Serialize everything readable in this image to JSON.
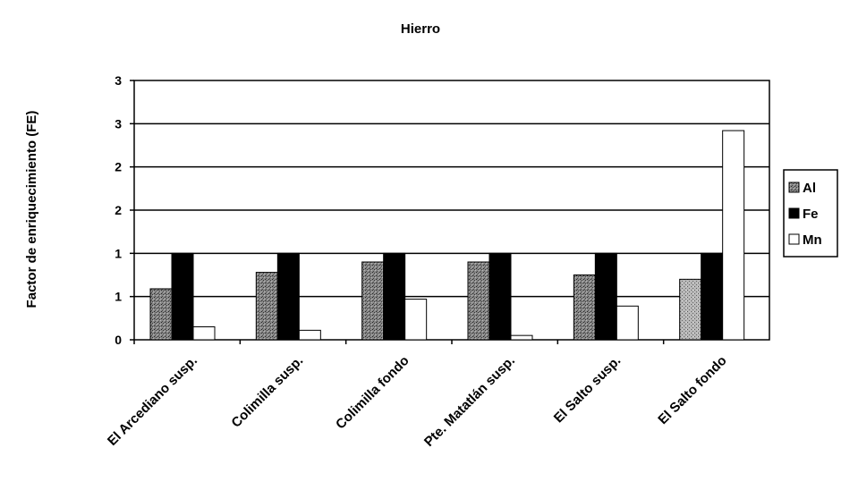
{
  "chart_data": {
    "type": "bar",
    "title": "Hierro",
    "xlabel": "",
    "ylabel": "Factor de enriquecimiento (FE)",
    "ylim": [
      0,
      3
    ],
    "y_ticks": [
      "0",
      "1",
      "1",
      "2",
      "2",
      "3",
      "3"
    ],
    "y_tick_values": [
      0,
      0.5,
      1.0,
      1.5,
      2.0,
      2.5,
      3.0
    ],
    "grid": "horizontal",
    "legend_position": "right",
    "categories": [
      "El Arcediano susp.",
      "Colimilla susp.",
      "Colimilla fondo",
      "Pte. Matatlán susp.",
      "El Salto susp.",
      "El Salto fondo"
    ],
    "series": [
      {
        "name": "Al",
        "color": "#6e6e6e",
        "values": [
          0.59,
          0.78,
          0.9,
          0.9,
          0.75,
          0.7
        ]
      },
      {
        "name": "Fe",
        "color": "#000000",
        "values": [
          1.0,
          1.0,
          1.0,
          1.0,
          1.0,
          1.0
        ]
      },
      {
        "name": "Mn",
        "color": "#ffffff",
        "values": [
          0.15,
          0.11,
          0.47,
          0.05,
          0.39,
          2.42
        ]
      }
    ]
  }
}
